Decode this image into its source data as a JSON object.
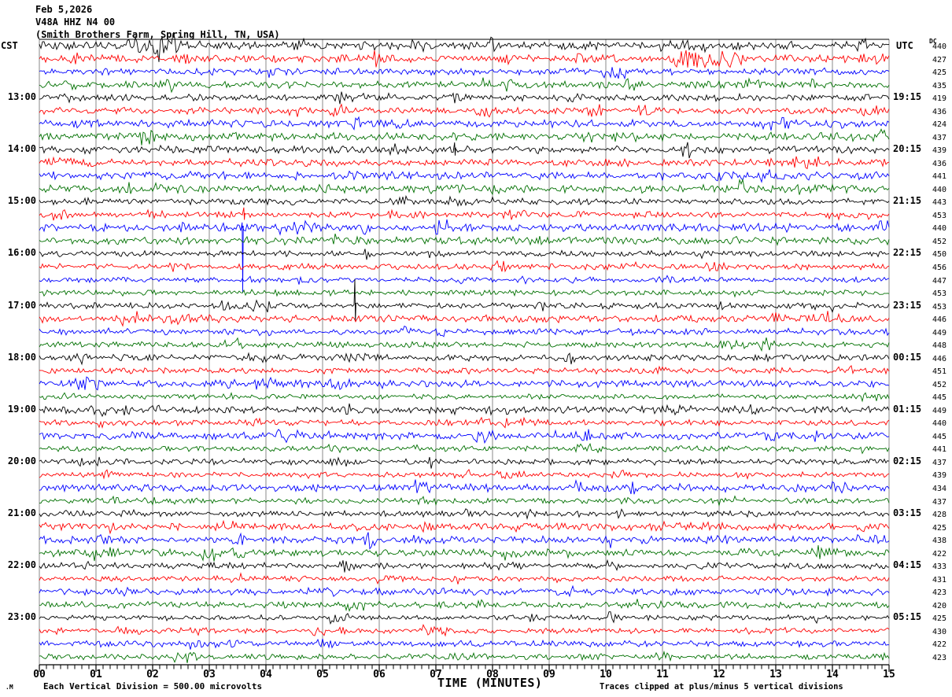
{
  "header": {
    "date": "Feb 5,2026",
    "station": "V48A HHZ N4 00",
    "location": "(Smith Brothers Farm, Spring Hill, TN, USA)"
  },
  "left_axis": {
    "timezone": "CST",
    "times": [
      {
        "row": 4,
        "label": "13:00"
      },
      {
        "row": 8,
        "label": "14:00"
      },
      {
        "row": 12,
        "label": "15:00"
      },
      {
        "row": 16,
        "label": "16:00"
      },
      {
        "row": 20,
        "label": "17:00"
      },
      {
        "row": 24,
        "label": "18:00"
      },
      {
        "row": 28,
        "label": "19:00"
      },
      {
        "row": 32,
        "label": "20:00"
      },
      {
        "row": 36,
        "label": "21:00"
      },
      {
        "row": 40,
        "label": "22:00"
      },
      {
        "row": 44,
        "label": "23:00"
      }
    ]
  },
  "right_axis": {
    "timezone": "UTC",
    "times": [
      {
        "row": 4,
        "label": "19:15"
      },
      {
        "row": 8,
        "label": "20:15"
      },
      {
        "row": 12,
        "label": "21:15"
      },
      {
        "row": 16,
        "label": "22:15"
      },
      {
        "row": 20,
        "label": "23:15"
      },
      {
        "row": 24,
        "label": "00:15"
      },
      {
        "row": 28,
        "label": "01:15"
      },
      {
        "row": 32,
        "label": "02:15"
      },
      {
        "row": 36,
        "label": "03:15"
      },
      {
        "row": 40,
        "label": "04:15"
      },
      {
        "row": 44,
        "label": "05:15"
      }
    ]
  },
  "dc_column": {
    "header": "DC"
  },
  "x_axis": {
    "title": "TIME (MINUTES)",
    "ticks": [
      "00",
      "01",
      "02",
      "03",
      "04",
      "05",
      "06",
      "07",
      "08",
      "09",
      "10",
      "11",
      "12",
      "13",
      "14",
      "15"
    ]
  },
  "footer": {
    "glyph": ".M",
    "scale_note": "Each Vertical Division =  500.00 microvolts",
    "clip_note": "Traces clipped at plus/minus 5 vertical divisions"
  },
  "colors": {
    "trace_cycle": [
      "#000000",
      "#ff0000",
      "#0000ff",
      "#007000"
    ],
    "grid": "#8a8a8a",
    "axis": "#000000",
    "background": "#ffffff"
  },
  "chart_data": {
    "type": "line",
    "subtype": "helicorder-seismogram",
    "title": "V48A HHZ N4 00 (Smith Brothers Farm, Spring Hill, TN, USA) Feb 5,2026",
    "minutes_per_line": 15,
    "num_rows": 48,
    "first_row_start_cst": "12:00",
    "last_row_start_cst": "23:45",
    "utc_offset_hours": 6,
    "clip_divisions": 5,
    "microvolts_per_division": 500.0,
    "xlabel": "TIME (MINUTES)",
    "x_ticks_minutes": [
      0,
      1,
      2,
      3,
      4,
      5,
      6,
      7,
      8,
      9,
      10,
      11,
      12,
      13,
      14,
      15
    ],
    "dc_offsets": [
      440,
      427,
      425,
      435,
      419,
      436,
      424,
      437,
      439,
      436,
      441,
      440,
      443,
      453,
      440,
      452,
      450,
      456,
      447,
      453,
      453,
      446,
      449,
      448,
      446,
      451,
      452,
      445,
      449,
      440,
      445,
      441,
      437,
      439,
      434,
      437,
      428,
      425,
      438,
      422,
      433,
      431,
      423,
      420,
      425,
      430,
      422,
      423
    ],
    "events": [
      {
        "row": 0,
        "start_cst": "12:00",
        "type": "burst",
        "minute_start": 1.3,
        "minute_end": 2.6,
        "amplitude_factor": 2.1,
        "description": "elevated noise on first black trace"
      },
      {
        "row": 1,
        "start_cst": "12:15",
        "type": "burst",
        "minute_start": 10.9,
        "minute_end": 12.45,
        "amplitude_factor": 3.4,
        "description": "high-amplitude noise burst on red trace near minute 11"
      },
      {
        "row": 8,
        "start_cst": "14:00",
        "type": "spike",
        "minute": 7.33,
        "up_divisions": 0.55,
        "down_divisions": 0.45,
        "description": "small impulse on black trace"
      },
      {
        "row": 13,
        "start_cst": "15:15",
        "type": "spike",
        "minute": 3.61,
        "up_divisions": 0.55,
        "down_divisions": 0.4,
        "description": "small impulse on red trace"
      },
      {
        "row": 14,
        "start_cst": "15:30",
        "type": "clipped_spike",
        "minute": 3.58,
        "up_divisions": 0.4,
        "down_divisions": 5.0,
        "description": "clipped spike on blue trace extending down 5 divisions"
      },
      {
        "row": 20,
        "start_cst": "17:00",
        "type": "spike",
        "minute": 5.57,
        "up_divisions": 2.05,
        "down_divisions": 1.2,
        "description": "impulse on black trace near minute 5.6"
      }
    ]
  }
}
